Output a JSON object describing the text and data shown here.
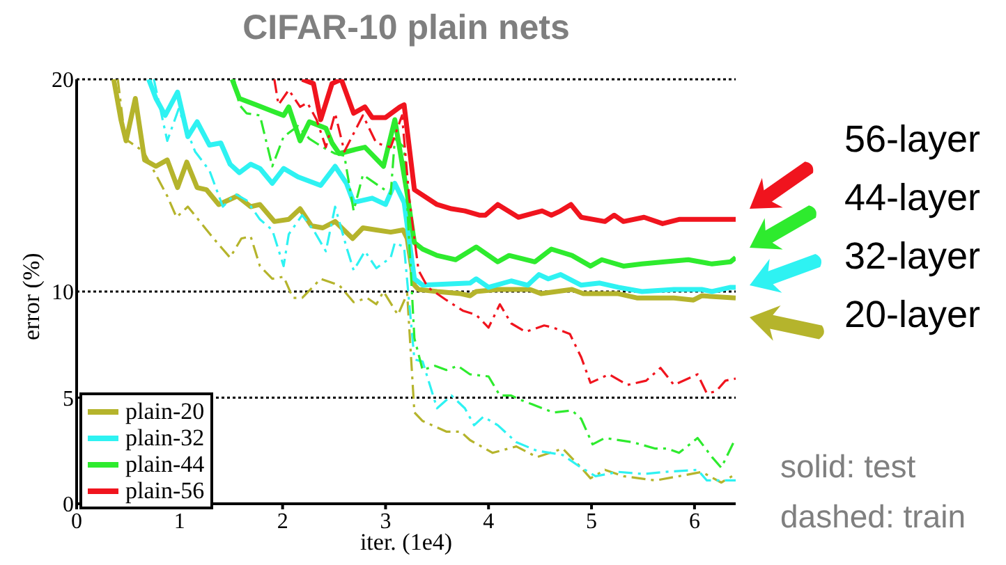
{
  "chart_data": {
    "type": "line",
    "title": "CIFAR-10 plain nets",
    "xlabel": "iter. (1e4)",
    "ylabel": "error (%)",
    "xlim": [
      0,
      6.4
    ],
    "xticks": [
      0,
      1,
      2,
      3,
      4,
      5,
      6
    ],
    "ylim": [
      0,
      20
    ],
    "yticks": [
      0,
      5,
      10,
      20
    ],
    "grid": "y",
    "legend": "bottom left",
    "marker": "none",
    "annotations": [
      "56-layer",
      "44-layer",
      "32-layer",
      "20-layer",
      "solid: test",
      "dashed: train"
    ],
    "series": [
      {
        "name": "plain-20",
        "color": "#b5b42c",
        "line_style": "solid",
        "x": [
          0.36,
          0.43,
          0.48,
          0.57,
          0.66,
          0.77,
          0.88,
          0.98,
          1.07,
          1.17,
          1.26,
          1.38,
          1.56,
          1.69,
          1.78,
          1.92,
          2.06,
          2.17,
          2.28,
          2.39,
          2.51,
          2.68,
          2.78,
          2.91,
          3.05,
          3.17,
          3.21,
          3.28,
          3.32,
          3.5,
          3.73,
          3.82,
          3.88,
          4.09,
          4.4,
          4.51,
          4.81,
          4.92,
          5.26,
          5.44,
          5.8,
          5.99,
          6.07,
          6.4
        ],
        "values": [
          20,
          18.1,
          17.1,
          19.1,
          16.2,
          15.9,
          16.2,
          14.9,
          16.1,
          14.9,
          14.8,
          14.1,
          14.5,
          14.0,
          14.1,
          13.3,
          13.4,
          13.9,
          13.1,
          13.0,
          13.3,
          12.5,
          13.0,
          12.9,
          12.8,
          12.9,
          12.5,
          10.3,
          10.1,
          10.0,
          9.9,
          9.8,
          10.0,
          10.1,
          10.1,
          9.9,
          10.1,
          9.9,
          9.9,
          9.7,
          9.7,
          9.6,
          9.8,
          9.7
        ]
      },
      {
        "name": "plain-32",
        "color": "#2ef2f2",
        "line_style": "solid",
        "x": [
          0.7,
          0.77,
          0.86,
          0.98,
          1.08,
          1.17,
          1.29,
          1.4,
          1.49,
          1.58,
          1.69,
          1.78,
          1.9,
          2.01,
          2.15,
          2.37,
          2.51,
          2.62,
          2.69,
          2.87,
          3.0,
          3.09,
          3.18,
          3.28,
          3.36,
          3.82,
          3.88,
          4.0,
          4.22,
          4.38,
          4.49,
          4.58,
          4.7,
          4.9,
          5.08,
          5.26,
          5.49,
          5.8,
          6.07,
          6.17,
          6.35,
          6.4
        ],
        "values": [
          20,
          19.1,
          18.3,
          19.4,
          17.3,
          18.0,
          16.9,
          17.0,
          16.0,
          15.6,
          16.0,
          15.8,
          15.1,
          15.8,
          15.4,
          15.0,
          15.9,
          15.1,
          14.2,
          14.4,
          14.1,
          15.1,
          14.2,
          10.6,
          10.3,
          10.4,
          10.6,
          10.2,
          10.5,
          10.3,
          10.8,
          10.6,
          10.8,
          10.3,
          10.4,
          10.2,
          10.0,
          10.1,
          10.1,
          10.0,
          10.2,
          10.2
        ]
      },
      {
        "name": "plain-44",
        "color": "#2eeb2e",
        "line_style": "solid",
        "x": [
          1.51,
          1.58,
          1.74,
          1.9,
          2.01,
          2.06,
          2.17,
          2.26,
          2.42,
          2.48,
          2.55,
          2.71,
          2.8,
          2.98,
          3.09,
          3.21,
          3.28,
          3.36,
          3.5,
          3.68,
          3.88,
          4.09,
          4.2,
          4.45,
          4.61,
          4.81,
          4.99,
          5.1,
          5.31,
          5.49,
          5.71,
          5.94,
          6.17,
          6.35,
          6.4
        ],
        "values": [
          20,
          19.1,
          18.8,
          18.5,
          18.3,
          18.7,
          17.1,
          18.0,
          17.7,
          17.0,
          16.5,
          16.7,
          16.8,
          15.9,
          18.1,
          14.6,
          12.3,
          12.0,
          11.7,
          11.5,
          12.1,
          11.4,
          11.7,
          11.4,
          12.0,
          11.7,
          11.2,
          11.5,
          11.2,
          11.3,
          11.4,
          11.5,
          11.3,
          11.4,
          11.6
        ]
      },
      {
        "name": "plain-56",
        "color": "#f0141e",
        "line_style": "solid",
        "x": [
          2.19,
          2.3,
          2.37,
          2.48,
          2.57,
          2.69,
          2.8,
          2.87,
          3.0,
          3.14,
          3.18,
          3.28,
          3.5,
          3.64,
          3.77,
          3.91,
          3.97,
          4.09,
          4.29,
          4.52,
          4.61,
          4.7,
          4.8,
          4.9,
          5.13,
          5.22,
          5.31,
          5.51,
          5.69,
          5.85,
          6.17,
          6.4
        ],
        "values": [
          20,
          19.8,
          18.1,
          19.8,
          20.0,
          18.4,
          18.7,
          18.2,
          18.2,
          18.7,
          18.8,
          14.8,
          14.1,
          13.9,
          13.8,
          13.6,
          13.6,
          14.1,
          13.5,
          13.8,
          13.6,
          13.8,
          14.1,
          13.5,
          13.3,
          13.6,
          13.3,
          13.5,
          13.2,
          13.4,
          13.4,
          13.4
        ]
      },
      {
        "color": "#b5b42c",
        "line_style": "dashed",
        "x": [
          0.4,
          0.47,
          0.65,
          0.88,
          0.97,
          1.08,
          1.33,
          1.49,
          1.6,
          1.69,
          1.78,
          1.9,
          2.01,
          2.1,
          2.19,
          2.37,
          2.55,
          2.69,
          2.82,
          2.91,
          2.98,
          3.12,
          3.21,
          3.28,
          3.36,
          3.59,
          3.73,
          3.82,
          4.04,
          4.27,
          4.47,
          4.72,
          4.9,
          4.99,
          5.13,
          5.31,
          5.62,
          5.85,
          6.07,
          6.26,
          6.4
        ],
        "values": [
          20,
          17.2,
          16.6,
          14.5,
          13.5,
          14.0,
          12.5,
          11.6,
          12.5,
          12.6,
          11.2,
          10.6,
          10.7,
          9.7,
          9.7,
          10.6,
          10.3,
          9.5,
          9.7,
          9.4,
          10.0,
          8.9,
          9.9,
          4.3,
          3.9,
          3.4,
          3.4,
          3.0,
          2.4,
          2.7,
          2.2,
          2.6,
          1.7,
          1.2,
          1.6,
          1.3,
          1.1,
          1.3,
          1.5,
          1.0,
          1.4
        ]
      },
      {
        "color": "#2ef2f2",
        "line_style": "dashed",
        "x": [
          0.75,
          0.88,
          0.99,
          1.15,
          1.29,
          1.42,
          1.54,
          1.65,
          1.78,
          1.9,
          2.01,
          2.06,
          2.19,
          2.3,
          2.42,
          2.51,
          2.62,
          2.69,
          2.8,
          2.91,
          3.05,
          3.09,
          3.18,
          3.28,
          3.36,
          3.5,
          3.64,
          3.77,
          3.86,
          3.95,
          4.09,
          4.27,
          4.47,
          4.72,
          4.9,
          5.04,
          5.26,
          5.51,
          5.71,
          6.03,
          6.12,
          6.26,
          6.4
        ],
        "values": [
          20,
          17.1,
          18.6,
          16.6,
          15.7,
          14.0,
          14.6,
          14.3,
          13.4,
          12.9,
          11.2,
          12.7,
          13.6,
          12.9,
          11.9,
          14.0,
          12.1,
          11.0,
          11.9,
          11.1,
          11.6,
          12.3,
          12.1,
          6.8,
          6.7,
          4.5,
          5.1,
          4.5,
          3.7,
          4.1,
          3.7,
          2.9,
          2.5,
          2.3,
          1.7,
          1.3,
          1.5,
          1.4,
          1.5,
          1.6,
          1.1,
          1.1,
          1.1
        ]
      },
      {
        "color": "#2eeb2e",
        "line_style": "dashed",
        "x": [
          1.53,
          1.58,
          1.65,
          1.78,
          1.9,
          2.01,
          2.15,
          2.26,
          2.39,
          2.51,
          2.6,
          2.69,
          2.78,
          2.96,
          3.05,
          3.09,
          3.18,
          3.28,
          3.36,
          3.48,
          3.59,
          3.7,
          3.82,
          4.0,
          4.11,
          4.22,
          4.31,
          4.47,
          4.63,
          4.81,
          4.9,
          5.01,
          5.13,
          5.4,
          5.62,
          5.74,
          5.85,
          6.03,
          6.17,
          6.26,
          6.4
        ],
        "values": [
          20,
          18.8,
          18.4,
          18.3,
          15.9,
          17.3,
          17.8,
          17.2,
          16.8,
          16.5,
          16.4,
          13.8,
          15.5,
          14.9,
          14.6,
          17.2,
          16.8,
          7.8,
          6.3,
          6.5,
          6.3,
          6.5,
          6.1,
          6.0,
          5.1,
          5.1,
          4.9,
          4.6,
          4.3,
          4.4,
          4.0,
          2.8,
          3.1,
          2.9,
          2.6,
          2.6,
          2.4,
          3.1,
          2.2,
          1.7,
          3.1
        ]
      },
      {
        "color": "#f0141e",
        "line_style": "dashed",
        "x": [
          1.92,
          1.96,
          2.06,
          2.17,
          2.24,
          2.33,
          2.42,
          2.51,
          2.6,
          2.78,
          2.91,
          3.05,
          3.16,
          3.23,
          3.32,
          3.41,
          3.59,
          3.75,
          3.88,
          4.0,
          4.11,
          4.22,
          4.36,
          4.54,
          4.63,
          4.79,
          4.9,
          4.99,
          5.17,
          5.35,
          5.53,
          5.67,
          5.8,
          6.03,
          6.12,
          6.21,
          6.3,
          6.4
        ],
        "values": [
          20,
          18.8,
          19.5,
          18.7,
          18.9,
          18.1,
          16.8,
          18.4,
          16.6,
          18.3,
          17.0,
          16.8,
          18.3,
          14.4,
          11.0,
          10.2,
          9.6,
          9.1,
          8.9,
          8.3,
          9.4,
          8.5,
          8.1,
          8.4,
          8.3,
          8.0,
          6.9,
          5.7,
          6.1,
          5.6,
          5.8,
          6.4,
          5.6,
          6.1,
          5.2,
          5.3,
          5.8,
          5.9
        ]
      }
    ]
  }
}
